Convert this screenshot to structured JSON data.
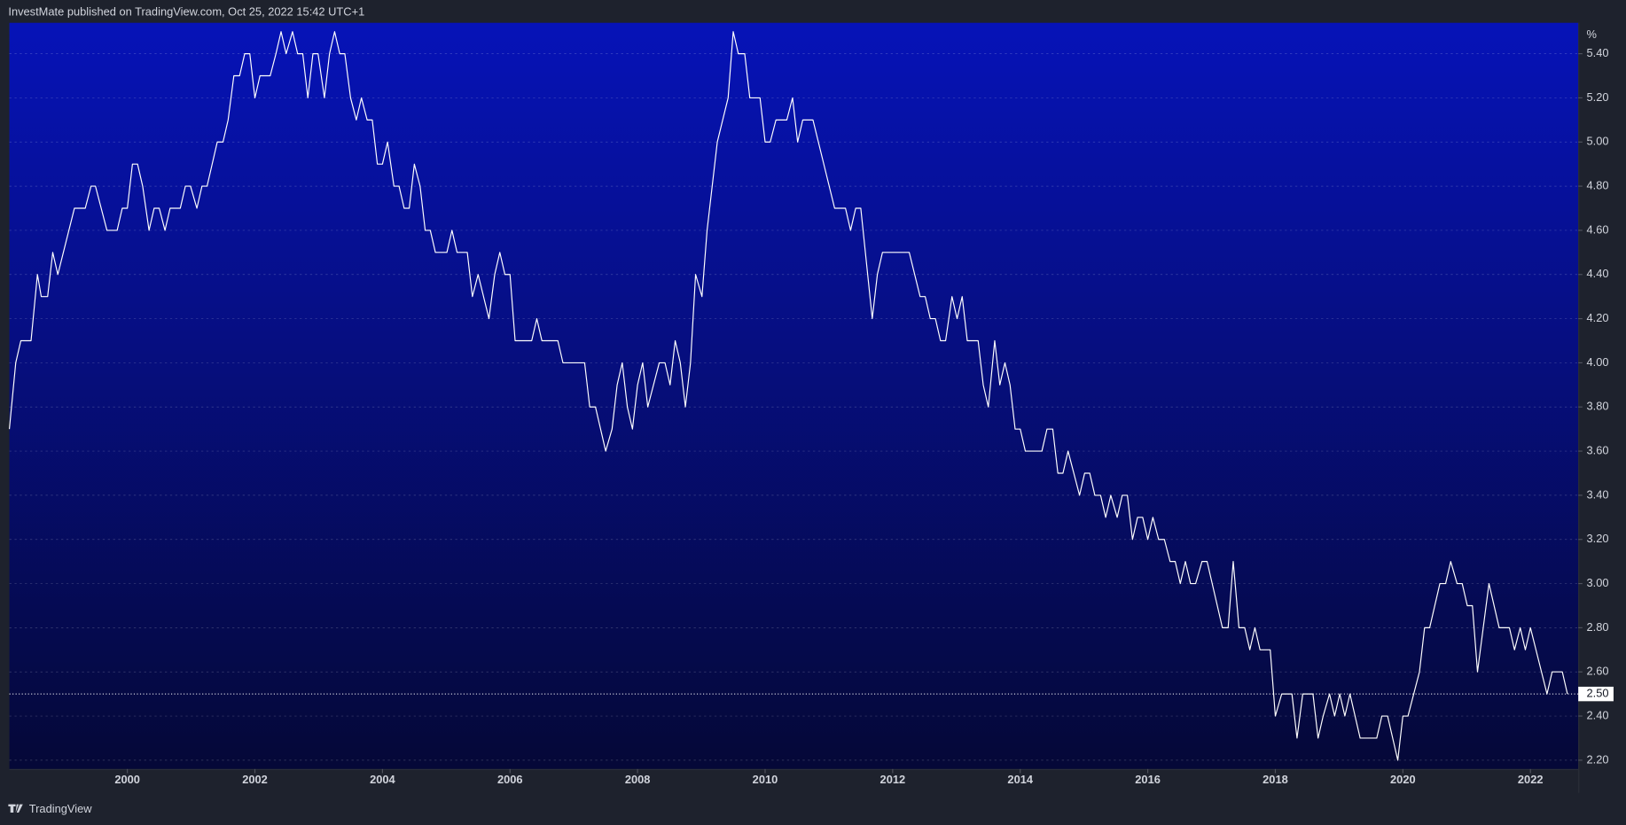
{
  "header": {
    "text": "InvestMate published on TradingView.com, Oct 25, 2022 15:42 UTC+1"
  },
  "footer": {
    "brand": "TradingView"
  },
  "chart_data": {
    "type": "line",
    "color": "#ffffff",
    "y_unit": "%",
    "xlim": [
      1998.15,
      2022.75
    ],
    "ylim": [
      2.16,
      5.54
    ],
    "xticks": [
      2000,
      2002,
      2004,
      2006,
      2008,
      2010,
      2012,
      2014,
      2016,
      2018,
      2020,
      2022
    ],
    "yticks": [
      {
        "value": 2.2,
        "label": "2.20"
      },
      {
        "value": 2.4,
        "label": "2.40"
      },
      {
        "value": 2.6,
        "label": "2.60"
      },
      {
        "value": 2.8,
        "label": "2.80"
      },
      {
        "value": 3.0,
        "label": "3.00"
      },
      {
        "value": 3.2,
        "label": "3.20"
      },
      {
        "value": 3.4,
        "label": "3.40"
      },
      {
        "value": 3.6,
        "label": "3.60"
      },
      {
        "value": 3.8,
        "label": "3.80"
      },
      {
        "value": 4.0,
        "label": "4.00"
      },
      {
        "value": 4.2,
        "label": "4.20"
      },
      {
        "value": 4.4,
        "label": "4.40"
      },
      {
        "value": 4.6,
        "label": "4.60"
      },
      {
        "value": 4.8,
        "label": "4.80"
      },
      {
        "value": 5.0,
        "label": "5.00"
      },
      {
        "value": 5.2,
        "label": "5.20"
      },
      {
        "value": 5.4,
        "label": "5.40"
      }
    ],
    "grid": true,
    "last_price": {
      "value": 2.5,
      "label": "2.50"
    },
    "x": [
      1998.15,
      1998.25,
      1998.33,
      1998.49,
      1998.59,
      1998.65,
      1998.75,
      1998.83,
      1998.91,
      1999.17,
      1999.34,
      1999.43,
      1999.5,
      1999.68,
      1999.84,
      1999.92,
      2000.0,
      2000.08,
      2000.16,
      2000.24,
      2000.34,
      2000.42,
      2000.5,
      2000.59,
      2000.67,
      2000.83,
      2000.91,
      2000.99,
      2001.09,
      2001.17,
      2001.25,
      2001.41,
      2001.5,
      2001.58,
      2001.67,
      2001.76,
      2001.84,
      2001.92,
      2002.0,
      2002.08,
      2002.24,
      2002.33,
      2002.41,
      2002.49,
      2002.59,
      2002.67,
      2002.75,
      2002.83,
      2002.91,
      2002.99,
      2003.09,
      2003.17,
      2003.25,
      2003.33,
      2003.41,
      2003.5,
      2003.59,
      2003.67,
      2003.76,
      2003.84,
      2003.92,
      2004.0,
      2004.08,
      2004.18,
      2004.26,
      2004.34,
      2004.42,
      2004.5,
      2004.59,
      2004.67,
      2004.75,
      2004.83,
      2005.01,
      2005.09,
      2005.17,
      2005.33,
      2005.41,
      2005.5,
      2005.67,
      2005.76,
      2005.84,
      2005.92,
      2006.0,
      2006.08,
      2006.34,
      2006.42,
      2006.5,
      2006.75,
      2006.83,
      2007.17,
      2007.25,
      2007.34,
      2007.5,
      2007.6,
      2007.68,
      2007.76,
      2007.84,
      2007.92,
      2008.0,
      2008.08,
      2008.16,
      2008.34,
      2008.43,
      2008.51,
      2008.59,
      2008.67,
      2008.75,
      2008.83,
      2008.91,
      2009.01,
      2009.09,
      2009.25,
      2009.42,
      2009.5,
      2009.58,
      2009.68,
      2009.76,
      2009.92,
      2010.0,
      2010.08,
      2010.17,
      2010.34,
      2010.43,
      2010.51,
      2010.59,
      2010.75,
      2011.09,
      2011.26,
      2011.34,
      2011.42,
      2011.5,
      2011.68,
      2011.76,
      2011.84,
      2012.26,
      2012.43,
      2012.51,
      2012.59,
      2012.67,
      2012.75,
      2012.83,
      2012.93,
      2013.01,
      2013.09,
      2013.17,
      2013.34,
      2013.42,
      2013.5,
      2013.6,
      2013.68,
      2013.76,
      2013.84,
      2013.92,
      2014.0,
      2014.08,
      2014.34,
      2014.42,
      2014.51,
      2014.59,
      2014.67,
      2014.75,
      2014.93,
      2015.01,
      2015.09,
      2015.17,
      2015.26,
      2015.34,
      2015.42,
      2015.52,
      2015.6,
      2015.68,
      2015.76,
      2015.84,
      2015.92,
      2016.0,
      2016.08,
      2016.17,
      2016.26,
      2016.35,
      2016.43,
      2016.51,
      2016.59,
      2016.67,
      2016.75,
      2016.85,
      2016.93,
      2017.17,
      2017.26,
      2017.34,
      2017.43,
      2017.52,
      2017.6,
      2017.68,
      2017.76,
      2017.92,
      2018.0,
      2018.1,
      2018.26,
      2018.34,
      2018.43,
      2018.59,
      2018.67,
      2018.75,
      2018.85,
      2018.93,
      2019.01,
      2019.09,
      2019.17,
      2019.33,
      2019.59,
      2019.67,
      2019.76,
      2019.92,
      2020.0,
      2020.08,
      2020.26,
      2020.34,
      2020.42,
      2020.58,
      2020.67,
      2020.75,
      2020.85,
      2020.93,
      2021.01,
      2021.09,
      2021.17,
      2021.35,
      2021.51,
      2021.67,
      2021.75,
      2021.84,
      2021.92,
      2022.0,
      2022.26,
      2022.34,
      2022.5,
      2022.58
    ],
    "values": [
      3.7,
      4.0,
      4.1,
      4.1,
      4.4,
      4.3,
      4.3,
      4.5,
      4.4,
      4.7,
      4.7,
      4.8,
      4.8,
      4.6,
      4.6,
      4.7,
      4.7,
      4.9,
      4.9,
      4.8,
      4.6,
      4.7,
      4.7,
      4.6,
      4.7,
      4.7,
      4.8,
      4.8,
      4.7,
      4.8,
      4.8,
      5.0,
      5.0,
      5.1,
      5.3,
      5.3,
      5.4,
      5.4,
      5.2,
      5.3,
      5.3,
      5.4,
      5.5,
      5.4,
      5.5,
      5.4,
      5.4,
      5.2,
      5.4,
      5.4,
      5.2,
      5.4,
      5.5,
      5.4,
      5.4,
      5.2,
      5.1,
      5.2,
      5.1,
      5.1,
      4.9,
      4.9,
      5.0,
      4.8,
      4.8,
      4.7,
      4.7,
      4.9,
      4.8,
      4.6,
      4.6,
      4.5,
      4.5,
      4.6,
      4.5,
      4.5,
      4.3,
      4.4,
      4.2,
      4.4,
      4.5,
      4.4,
      4.4,
      4.1,
      4.1,
      4.2,
      4.1,
      4.1,
      4.0,
      4.0,
      3.8,
      3.8,
      3.6,
      3.7,
      3.9,
      4.0,
      3.8,
      3.7,
      3.9,
      4.0,
      3.8,
      4.0,
      4.0,
      3.9,
      4.1,
      4.0,
      3.8,
      4.0,
      4.4,
      4.3,
      4.6,
      5.0,
      5.2,
      5.5,
      5.4,
      5.4,
      5.2,
      5.2,
      5.0,
      5.0,
      5.1,
      5.1,
      5.2,
      5.0,
      5.1,
      5.1,
      4.7,
      4.7,
      4.6,
      4.7,
      4.7,
      4.2,
      4.4,
      4.5,
      4.5,
      4.3,
      4.3,
      4.2,
      4.2,
      4.1,
      4.1,
      4.3,
      4.2,
      4.3,
      4.1,
      4.1,
      3.9,
      3.8,
      4.1,
      3.9,
      4.0,
      3.9,
      3.7,
      3.7,
      3.6,
      3.6,
      3.7,
      3.7,
      3.5,
      3.5,
      3.6,
      3.4,
      3.5,
      3.5,
      3.4,
      3.4,
      3.3,
      3.4,
      3.3,
      3.4,
      3.4,
      3.2,
      3.3,
      3.3,
      3.2,
      3.3,
      3.2,
      3.2,
      3.1,
      3.1,
      3.0,
      3.1,
      3.0,
      3.0,
      3.1,
      3.1,
      2.8,
      2.8,
      3.1,
      2.8,
      2.8,
      2.7,
      2.8,
      2.7,
      2.7,
      2.4,
      2.5,
      2.5,
      2.3,
      2.5,
      2.5,
      2.3,
      2.4,
      2.5,
      2.4,
      2.5,
      2.4,
      2.5,
      2.3,
      2.3,
      2.4,
      2.4,
      2.2,
      2.4,
      2.4,
      2.6,
      2.8,
      2.8,
      3.0,
      3.0,
      3.1,
      3.0,
      3.0,
      2.9,
      2.9,
      2.6,
      3.0,
      2.8,
      2.8,
      2.7,
      2.8,
      2.7,
      2.8,
      2.5,
      2.6,
      2.6,
      2.5
    ]
  }
}
